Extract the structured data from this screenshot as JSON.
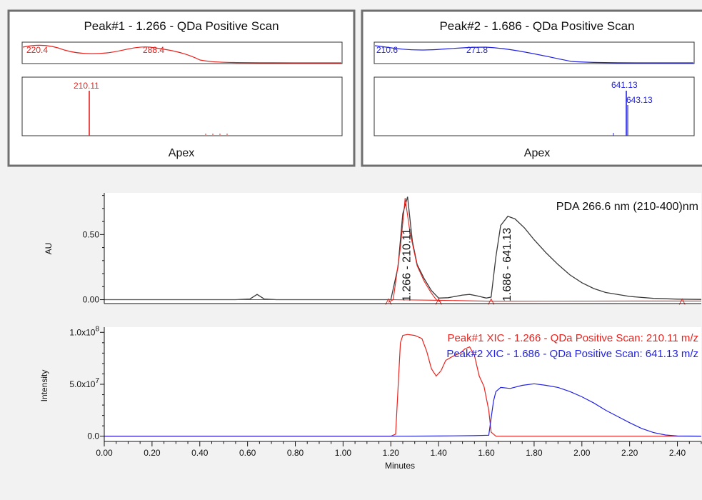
{
  "colors": {
    "peak1": "#e8231e",
    "peak2": "#2323e0",
    "pda": "#3a3a3a",
    "axis": "#111111",
    "frame": "#6f6f6f",
    "background": "#f2f2f2",
    "panel_bg": "#ffffff"
  },
  "spectra_panels": [
    {
      "title": "Peak#1 - 1.266 - QDa Positive Scan",
      "footer": "Apex",
      "uv_labels": [
        "220.4",
        "288.4"
      ],
      "ms_labels": [
        "210.11"
      ]
    },
    {
      "title": "Peak#2 - 1.686 - QDa Positive Scan",
      "footer": "Apex",
      "uv_labels": [
        "210.6",
        "271.8"
      ],
      "ms_labels": [
        "641.13",
        "643.13"
      ]
    }
  ],
  "chart_data": [
    {
      "type": "line",
      "ylabel": "AU",
      "yticks": [
        "0.00",
        "0.50"
      ],
      "ylim": [
        -0.03,
        0.82
      ],
      "xlim": [
        0.0,
        2.5
      ],
      "annotation": "PDA 266.6 nm (210-400)nm",
      "peak_labels": [
        {
          "text": "1.266 - 210.11",
          "x": 1.266
        },
        {
          "text": "1.686 - 641.13",
          "x": 1.686
        }
      ],
      "series": [
        {
          "points": [
            [
              0.0,
              0.0
            ],
            [
              0.55,
              0.0
            ],
            [
              0.61,
              0.005
            ],
            [
              0.64,
              0.04
            ],
            [
              0.67,
              0.005
            ],
            [
              0.72,
              0.0
            ],
            [
              1.1,
              0.0
            ],
            [
              1.2,
              0.0
            ],
            [
              1.23,
              0.25
            ],
            [
              1.25,
              0.66
            ],
            [
              1.27,
              0.79
            ],
            [
              1.29,
              0.45
            ],
            [
              1.31,
              0.27
            ],
            [
              1.34,
              0.16
            ],
            [
              1.37,
              0.07
            ],
            [
              1.4,
              0.012
            ],
            [
              1.44,
              0.015
            ],
            [
              1.5,
              0.035
            ],
            [
              1.53,
              0.04
            ],
            [
              1.56,
              0.03
            ],
            [
              1.6,
              0.012
            ],
            [
              1.62,
              0.02
            ],
            [
              1.64,
              0.33
            ],
            [
              1.66,
              0.57
            ],
            [
              1.69,
              0.64
            ],
            [
              1.72,
              0.62
            ],
            [
              1.76,
              0.55
            ],
            [
              1.8,
              0.46
            ],
            [
              1.85,
              0.36
            ],
            [
              1.9,
              0.27
            ],
            [
              1.95,
              0.19
            ],
            [
              2.0,
              0.13
            ],
            [
              2.05,
              0.085
            ],
            [
              2.1,
              0.055
            ],
            [
              2.2,
              0.025
            ],
            [
              2.3,
              0.01
            ],
            [
              2.4,
              0.004
            ],
            [
              2.5,
              0.002
            ]
          ]
        },
        {
          "points": [
            [
              1.19,
              -0.02
            ],
            [
              1.21,
              0.0
            ],
            [
              1.24,
              0.4
            ],
            [
              1.26,
              0.78
            ],
            [
              1.28,
              0.52
            ],
            [
              1.31,
              0.26
            ],
            [
              1.34,
              0.14
            ],
            [
              1.37,
              0.05
            ],
            [
              1.39,
              0.0
            ],
            [
              1.41,
              -0.02
            ]
          ]
        },
        {
          "points": [
            [
              0.0,
              0.0
            ],
            [
              1.19,
              0.0
            ],
            [
              1.41,
              -0.005
            ],
            [
              1.62,
              -0.012
            ],
            [
              2.42,
              -0.01
            ],
            [
              2.5,
              -0.01
            ]
          ]
        }
      ]
    },
    {
      "type": "line",
      "xlabel": "Minutes",
      "ylabel": "Intensity",
      "yticks": [
        "0.0",
        "5.0x10^7",
        "1.0x10^8"
      ],
      "ylim": [
        -5000000.0,
        105000000.0
      ],
      "xlim": [
        0.0,
        2.5
      ],
      "xticks": [
        "0.00",
        "0.20",
        "0.40",
        "0.60",
        "0.80",
        "1.00",
        "1.20",
        "1.40",
        "1.60",
        "1.80",
        "2.00",
        "2.20",
        "2.40"
      ],
      "series": [
        {
          "name": "Peak#1 XIC - 1.266 - QDa Positive Scan: 210.11 m/z",
          "points": [
            [
              0.0,
              0.0
            ],
            [
              1.2,
              0.0
            ],
            [
              1.22,
              2000000.0
            ],
            [
              1.24,
              90000000.0
            ],
            [
              1.25,
              97000000.0
            ],
            [
              1.27,
              98000000.0
            ],
            [
              1.3,
              97000000.0
            ],
            [
              1.33,
              94000000.0
            ],
            [
              1.35,
              82000000.0
            ],
            [
              1.37,
              65000000.0
            ],
            [
              1.39,
              58000000.0
            ],
            [
              1.41,
              63000000.0
            ],
            [
              1.43,
              73000000.0
            ],
            [
              1.46,
              77000000.0
            ],
            [
              1.49,
              80000000.0
            ],
            [
              1.51,
              84000000.0
            ],
            [
              1.53,
              86000000.0
            ],
            [
              1.55,
              78000000.0
            ],
            [
              1.57,
              58000000.0
            ],
            [
              1.59,
              48000000.0
            ],
            [
              1.61,
              25000000.0
            ],
            [
              1.62,
              4000000.0
            ],
            [
              1.64,
              0.0
            ],
            [
              1.8,
              0.0
            ],
            [
              2.2,
              0.0
            ],
            [
              2.5,
              0.0
            ]
          ]
        },
        {
          "name": "Peak#2 XIC - 1.686 - QDa Positive Scan: 641.13 m/z",
          "points": [
            [
              0.0,
              0.0
            ],
            [
              1.25,
              0.0
            ],
            [
              1.4,
              200000.0
            ],
            [
              1.55,
              600000.0
            ],
            [
              1.61,
              1000000.0
            ],
            [
              1.63,
              34000000.0
            ],
            [
              1.64,
              43000000.0
            ],
            [
              1.66,
              47000000.0
            ],
            [
              1.7,
              46000000.0
            ],
            [
              1.75,
              49000000.0
            ],
            [
              1.8,
              50500000.0
            ],
            [
              1.85,
              49000000.0
            ],
            [
              1.9,
              47000000.0
            ],
            [
              1.95,
              43000000.0
            ],
            [
              2.0,
              38000000.0
            ],
            [
              2.05,
              32000000.0
            ],
            [
              2.1,
              25000000.0
            ],
            [
              2.15,
              19000000.0
            ],
            [
              2.2,
              13000000.0
            ],
            [
              2.25,
              7500000.0
            ],
            [
              2.3,
              3500000.0
            ],
            [
              2.35,
              1200000.0
            ],
            [
              2.4,
              300000.0
            ],
            [
              2.5,
              100000.0
            ]
          ]
        }
      ]
    }
  ]
}
